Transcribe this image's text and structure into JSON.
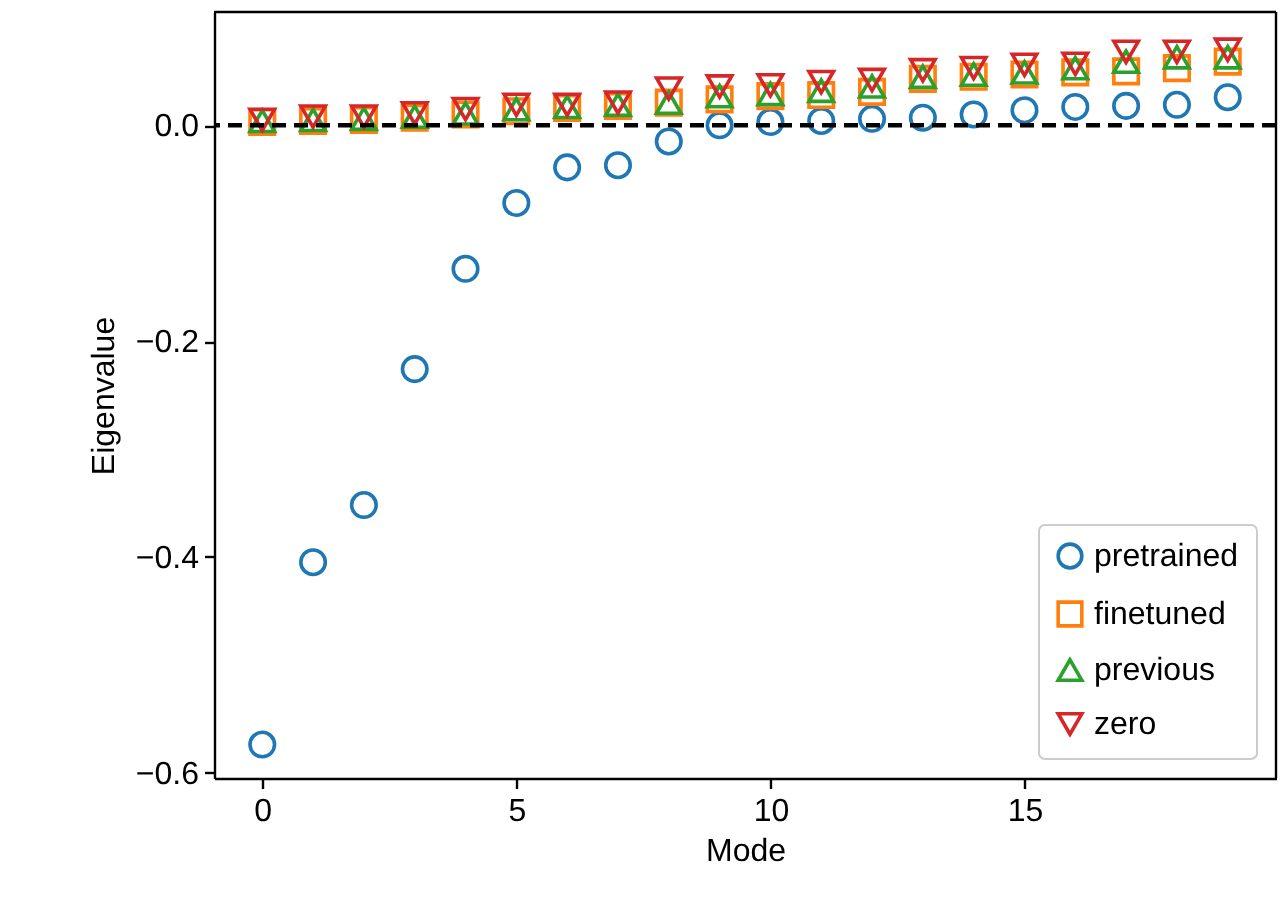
{
  "chart_data": {
    "type": "scatter",
    "xlabel": "Mode",
    "ylabel": "Eigenvalue",
    "x": [
      0,
      1,
      2,
      3,
      4,
      5,
      6,
      7,
      8,
      9,
      10,
      11,
      12,
      13,
      14,
      15,
      16,
      17,
      18,
      19
    ],
    "series": [
      {
        "name": "pretrained",
        "color": "#1f77b4",
        "marker": "circle",
        "values": [
          -0.574,
          -0.405,
          -0.352,
          -0.226,
          -0.133,
          -0.072,
          -0.039,
          -0.037,
          -0.015,
          0.0,
          0.003,
          0.004,
          0.006,
          0.007,
          0.01,
          0.014,
          0.017,
          0.018,
          0.019,
          0.026
        ]
      },
      {
        "name": "finetuned",
        "color": "#ff7f0e",
        "marker": "square",
        "values": [
          0.003,
          0.004,
          0.005,
          0.007,
          0.01,
          0.013,
          0.016,
          0.018,
          0.021,
          0.024,
          0.027,
          0.028,
          0.031,
          0.043,
          0.045,
          0.047,
          0.049,
          0.05,
          0.053,
          0.059
        ]
      },
      {
        "name": "previous",
        "color": "#2ca02c",
        "marker": "triangle",
        "values": [
          0.004,
          0.005,
          0.006,
          0.008,
          0.011,
          0.015,
          0.017,
          0.019,
          0.021,
          0.027,
          0.029,
          0.032,
          0.036,
          0.045,
          0.047,
          0.049,
          0.053,
          0.059,
          0.063,
          0.063
        ]
      },
      {
        "name": "zero",
        "color": "#d62728",
        "marker": "triangle-down",
        "values": [
          0.005,
          0.008,
          0.008,
          0.011,
          0.015,
          0.019,
          0.019,
          0.021,
          0.034,
          0.036,
          0.037,
          0.04,
          0.042,
          0.051,
          0.053,
          0.056,
          0.057,
          0.068,
          0.068,
          0.07
        ]
      }
    ],
    "xlim": [
      -0.95,
      19.95
    ],
    "xticks": [
      0,
      5,
      10,
      15
    ],
    "ylim": [
      -0.605,
      0.105
    ],
    "yticks": [
      {
        "value": -0.6,
        "label": "−0.6"
      },
      {
        "value": -0.4,
        "label": "−0.4"
      },
      {
        "value": -0.2,
        "label": "−0.2"
      },
      {
        "value": 0,
        "label": "0.0"
      }
    ],
    "ref_lines": [
      {
        "axis": "y",
        "value": 0,
        "color": "#000000",
        "line_style": "dashed"
      }
    ],
    "legend": "bottom right",
    "grid": false
  }
}
